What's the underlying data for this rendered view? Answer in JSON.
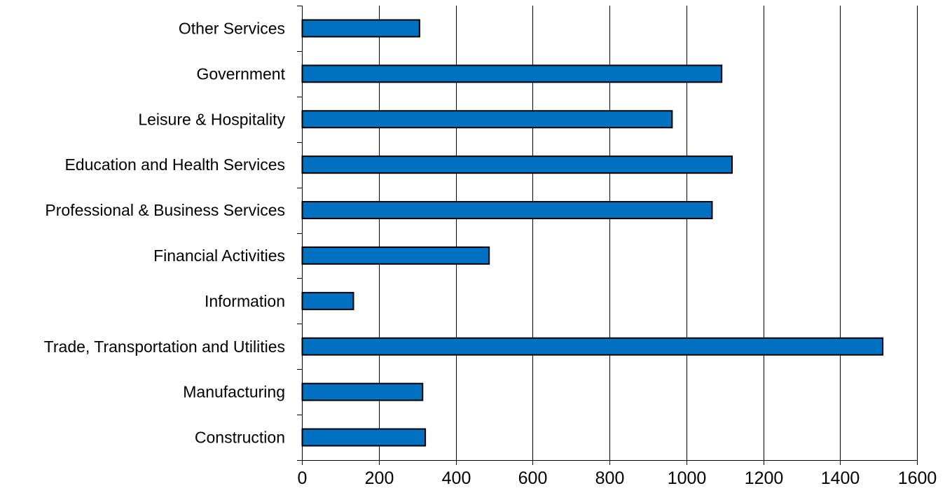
{
  "chart_data": {
    "type": "bar",
    "orientation": "horizontal",
    "categories": [
      "Other Services",
      "Government",
      "Leisure & Hospitality",
      "Education and Health Services",
      "Professional & Business Services",
      "Financial Activities",
      "Information",
      "Trade, Transportation and Utilities",
      "Manufacturing",
      "Construction"
    ],
    "values": [
      305,
      1091,
      962,
      1118,
      1066,
      486,
      133,
      1510,
      313,
      320
    ],
    "xlim": [
      0,
      1600
    ],
    "xticks": [
      "0",
      "200",
      "400",
      "600",
      "800",
      "1000",
      "1200",
      "1400",
      "1600"
    ],
    "title": "",
    "xlabel": "",
    "ylabel": "",
    "grid": "vertical",
    "legend": "none",
    "bar_color": "#0070C0"
  }
}
